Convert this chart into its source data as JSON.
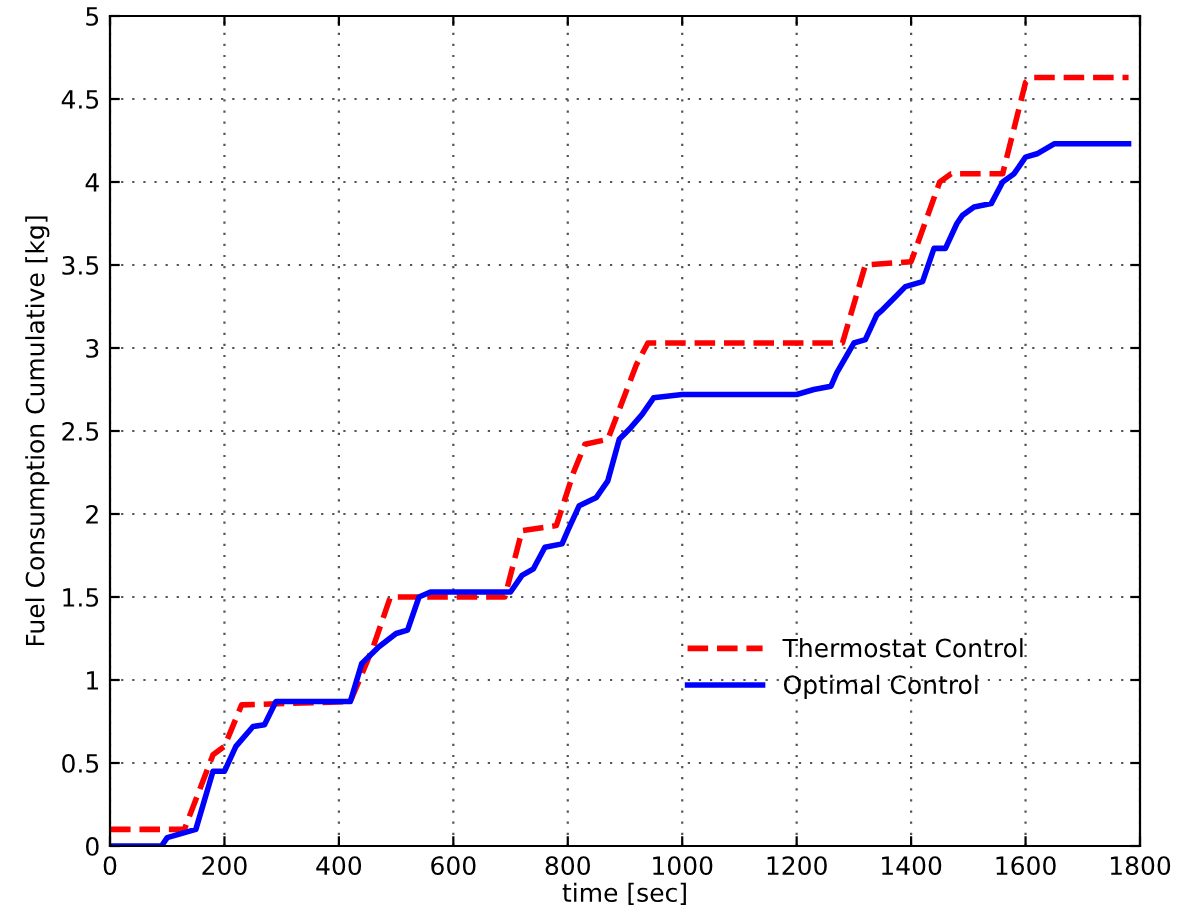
{
  "chart_data": {
    "type": "line",
    "xlabel": "time [sec]",
    "ylabel": "Fuel Consumption Cumulative [kg]",
    "xlim": [
      0,
      1800
    ],
    "ylim": [
      0,
      5
    ],
    "xticks": [
      0,
      200,
      400,
      600,
      800,
      1000,
      1200,
      1400,
      1600,
      1800
    ],
    "yticks": [
      0,
      0.5,
      1,
      1.5,
      2,
      2.5,
      3,
      3.5,
      4,
      4.5,
      5
    ],
    "grid": true,
    "legend": "bottom right",
    "series": [
      {
        "name": "Thermostat Control",
        "color": "#ff0000",
        "line_style": "dashed",
        "x": [
          0,
          130,
          180,
          200,
          230,
          420,
          460,
          490,
          690,
          720,
          780,
          810,
          830,
          870,
          920,
          940,
          1280,
          1320,
          1400,
          1450,
          1470,
          1560,
          1600,
          1610,
          1780
        ],
        "values": [
          0.1,
          0.1,
          0.55,
          0.6,
          0.85,
          0.87,
          1.2,
          1.5,
          1.5,
          1.9,
          1.93,
          2.25,
          2.42,
          2.45,
          2.9,
          3.03,
          3.03,
          3.5,
          3.52,
          4.0,
          4.05,
          4.05,
          4.6,
          4.63,
          4.63
        ]
      },
      {
        "name": "Optimal Control",
        "color": "#0000ff",
        "line_style": "solid",
        "x": [
          0,
          90,
          100,
          150,
          180,
          200,
          220,
          250,
          270,
          290,
          420,
          440,
          470,
          500,
          520,
          540,
          560,
          700,
          720,
          740,
          760,
          790,
          800,
          820,
          850,
          870,
          890,
          910,
          930,
          950,
          1000,
          1200,
          1230,
          1260,
          1270,
          1300,
          1320,
          1340,
          1350,
          1370,
          1390,
          1420,
          1440,
          1460,
          1480,
          1490,
          1510,
          1540,
          1560,
          1580,
          1600,
          1620,
          1650,
          1780
        ],
        "values": [
          0,
          0,
          0.05,
          0.1,
          0.45,
          0.45,
          0.6,
          0.72,
          0.73,
          0.87,
          0.87,
          1.1,
          1.2,
          1.28,
          1.3,
          1.5,
          1.53,
          1.53,
          1.63,
          1.67,
          1.8,
          1.82,
          1.9,
          2.05,
          2.1,
          2.2,
          2.45,
          2.52,
          2.6,
          2.7,
          2.72,
          2.72,
          2.75,
          2.77,
          2.85,
          3.03,
          3.05,
          3.2,
          3.23,
          3.3,
          3.37,
          3.4,
          3.6,
          3.6,
          3.75,
          3.8,
          3.85,
          3.87,
          4.0,
          4.05,
          4.15,
          4.17,
          4.23,
          4.23
        ]
      }
    ]
  }
}
